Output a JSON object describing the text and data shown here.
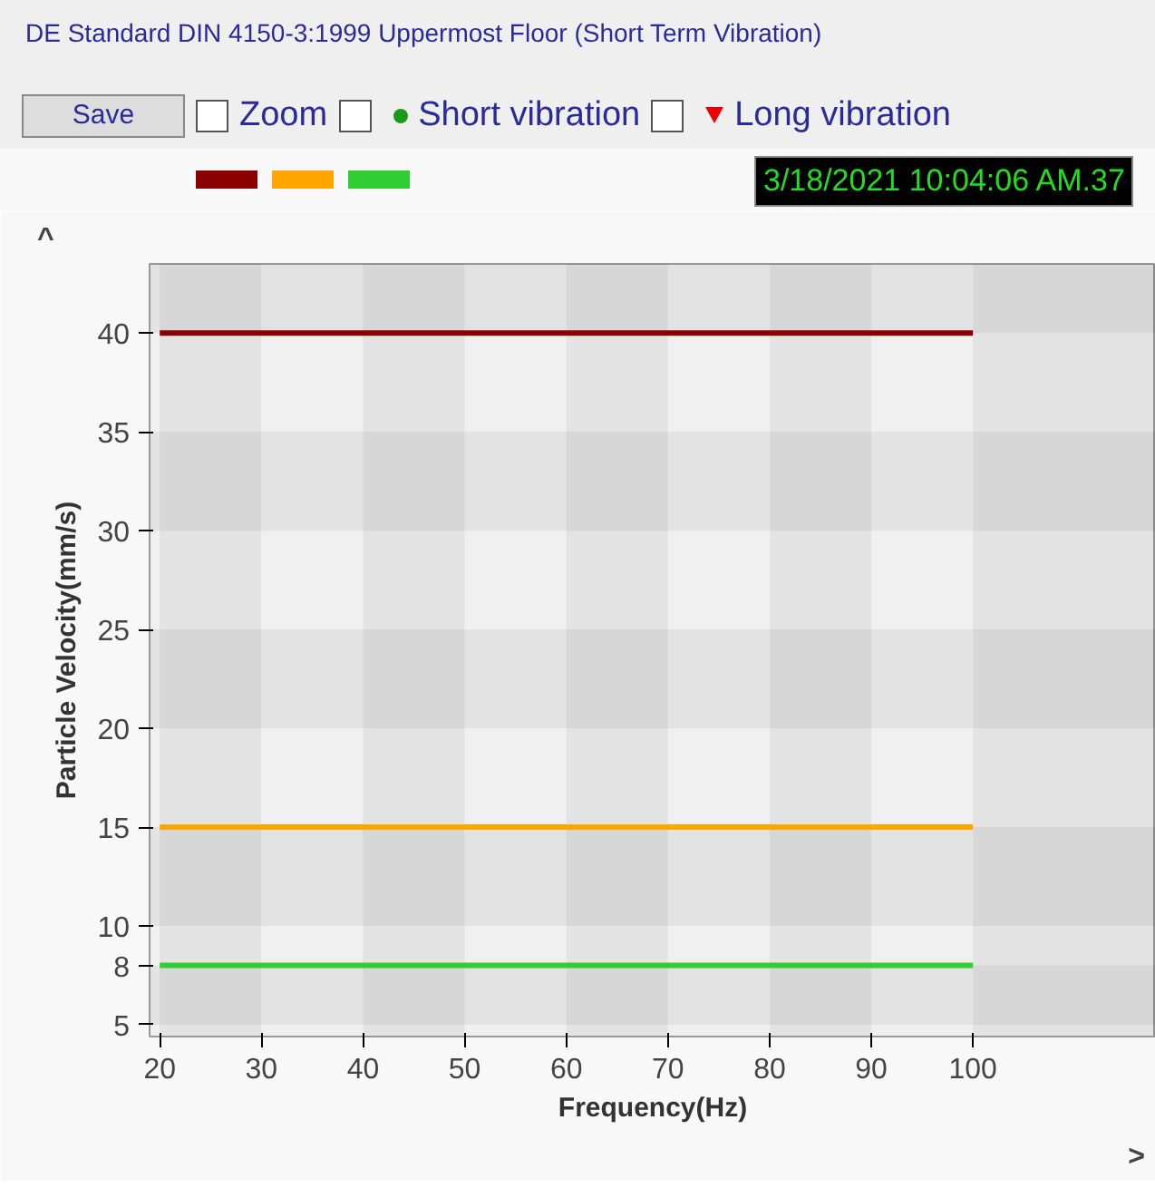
{
  "chart_data": {
    "type": "line",
    "title": "DE Standard DIN 4150-3:1999 Uppermost Floor (Short Term Vibration)",
    "xlabel": "Frequency(Hz)",
    "ylabel": "Particle Velocity(mm/s)",
    "x": [
      20,
      100
    ],
    "series": [
      {
        "color": "#8b0000",
        "values": [
          40,
          40
        ]
      },
      {
        "color": "#ffa500",
        "values": [
          15,
          15
        ]
      },
      {
        "color": "#32cd32",
        "values": [
          8,
          8
        ]
      }
    ],
    "xlim": [
      19,
      118
    ],
    "ylim": [
      4.4,
      43.5
    ],
    "xticks": [
      20,
      30,
      40,
      50,
      60,
      70,
      80,
      90,
      100
    ],
    "yticks": [
      5,
      8,
      10,
      15,
      20,
      25,
      30,
      35,
      40
    ],
    "marker": "none",
    "line_style": "solid",
    "annotations": [
      "Save",
      "Zoom",
      "Short vibration",
      "Long vibration",
      "3/18/2021 10:04:06 AM.37",
      "^",
      ">"
    ]
  }
}
